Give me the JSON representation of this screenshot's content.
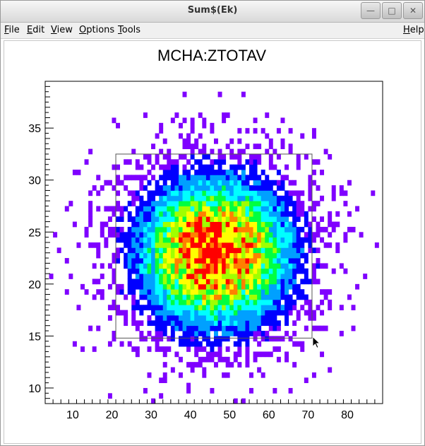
{
  "window": {
    "title": "Sum$(Ek)",
    "buttons": [
      "minimize-icon",
      "maximize-icon",
      "close-icon"
    ]
  },
  "menubar": {
    "items": [
      {
        "label": "File",
        "mnemonic": "F"
      },
      {
        "label": "Edit",
        "mnemonic": "E"
      },
      {
        "label": "View",
        "mnemonic": "V"
      },
      {
        "label": "Options",
        "mnemonic": "O"
      },
      {
        "label": "Tools",
        "mnemonic": "T"
      }
    ],
    "help": {
      "label": "Help",
      "mnemonic": "H"
    }
  },
  "chart_data": {
    "type": "heatmap",
    "title": "MCHA:ZTOTAV",
    "xlabel": "",
    "ylabel": "",
    "xlim": [
      3,
      89
    ],
    "ylim": [
      8.5,
      39.5
    ],
    "xticks": [
      "10",
      "20",
      "30",
      "40",
      "50",
      "60",
      "70",
      "80"
    ],
    "yticks": [
      "10",
      "15",
      "20",
      "25",
      "30",
      "35"
    ],
    "colormap": [
      "#7f00ff",
      "#0000ff",
      "#00a0ff",
      "#00ffff",
      "#00ff40",
      "#a0ff00",
      "#ffff00",
      "#ff8000",
      "#ff0000"
    ],
    "peak": {
      "x": 46.5,
      "y": 23.0
    },
    "spread": {
      "sx": 13.5,
      "sy": 4.9
    },
    "zoom_box": {
      "x": [
        21,
        71
      ],
      "y": [
        14.8,
        32.5
      ]
    }
  },
  "colors": {
    "accent": "#7f00ff",
    "frame": "#000000"
  }
}
